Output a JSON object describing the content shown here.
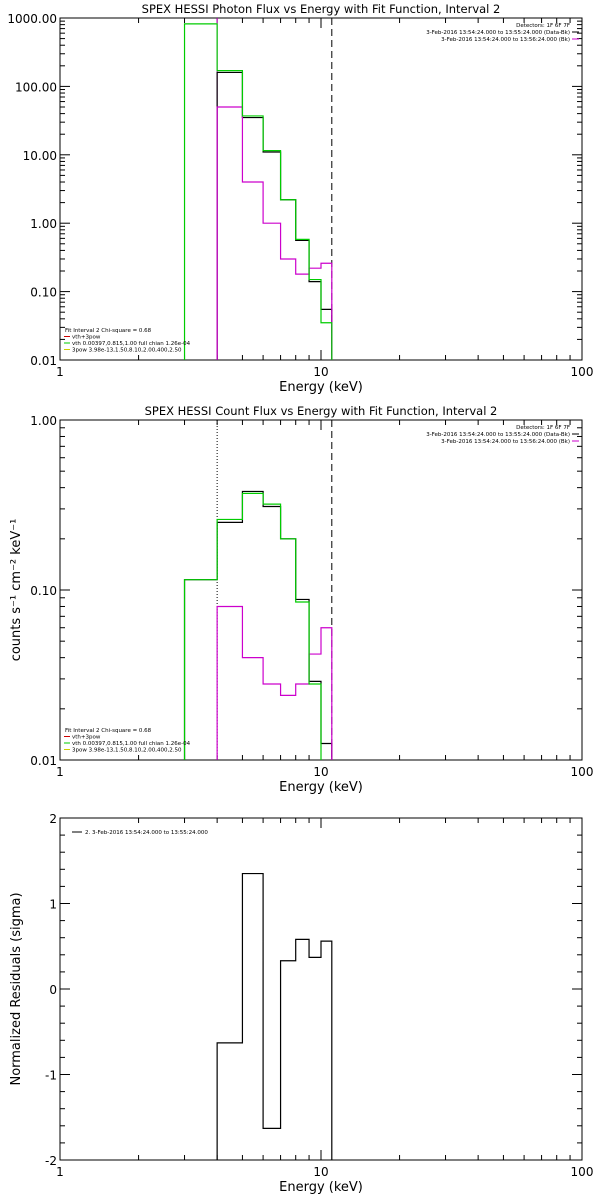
{
  "chart_data": [
    {
      "type": "line",
      "title": "SPEX HESSI Photon Flux vs Energy with Fit Function, Interval 2",
      "xlabel": "Energy (keV)",
      "ylabel": "",
      "xscale": "log",
      "yscale": "log",
      "xlim": [
        1,
        100
      ],
      "ylim": [
        0.01,
        1000
      ],
      "xticks": [
        {
          "v": 1,
          "label": "1"
        },
        {
          "v": 10,
          "label": "10"
        },
        {
          "v": 100,
          "label": "100"
        }
      ],
      "yticks": [
        {
          "v": 1000,
          "label": "1000.00"
        },
        {
          "v": 100,
          "label": "100.00"
        },
        {
          "v": 10,
          "label": "10.00"
        },
        {
          "v": 1,
          "label": "1.00"
        },
        {
          "v": 0.1,
          "label": "0.10"
        },
        {
          "v": 0.01,
          "label": "0.01"
        }
      ],
      "vlines": [
        {
          "x": 4.0,
          "style": "solid",
          "color": "#cc00cc"
        },
        {
          "x": 11.0,
          "style": "dashed",
          "color": "#000000"
        }
      ],
      "legend_top_right": [
        {
          "text": "Detectors: 1F 6F 7F",
          "color": ""
        },
        {
          "text": "3-Feb-2016 13:54:24.000 to 13:55:24.000 (Data-Bk)",
          "color": "#000000"
        },
        {
          "text": "3-Feb-2016 13:54:24.000 to 13:56:24.000 (Bk)",
          "color": "#cc00cc"
        }
      ],
      "legend_bottom_left": [
        {
          "text": "Fit Interval 2   Chi-square = 0.68",
          "color": ""
        },
        {
          "text": "vth+3pow",
          "color": "#cc0000"
        },
        {
          "text": "vth 0.00397,0.815,1.00   full chian 1.26e-04",
          "color": "#00cc00"
        },
        {
          "text": "3pow 3.98e-13,1.50,8.10,2.00,400,2.50",
          "color": "#cccc00"
        }
      ],
      "series": [
        {
          "color": "#000000",
          "edges": [
            4.0,
            5.0,
            6.0,
            7.0,
            8.0,
            9.0,
            10.0,
            11.0
          ],
          "values": [
            160,
            35,
            11,
            2.2,
            0.56,
            0.14,
            0.055
          ]
        },
        {
          "color": "#cc00cc",
          "edges": [
            4.0,
            5.0,
            6.0,
            7.0,
            8.0,
            9.0,
            10.0,
            11.0
          ],
          "values": [
            50,
            4.0,
            1.0,
            0.3,
            0.18,
            0.22,
            0.26
          ]
        },
        {
          "color": "#00cc00",
          "edges": [
            3.0,
            4.0,
            5.0,
            6.0,
            7.0,
            8.0,
            9.0,
            10.0,
            11.0
          ],
          "values": [
            820,
            170,
            37,
            11.5,
            2.2,
            0.58,
            0.15,
            0.035
          ]
        }
      ]
    },
    {
      "type": "line",
      "title": "SPEX HESSI Count Flux vs Energy with Fit Function, Interval 2",
      "xlabel": "Energy (keV)",
      "ylabel": "counts s⁻¹ cm⁻² keV⁻¹",
      "xscale": "log",
      "yscale": "log",
      "xlim": [
        1,
        100
      ],
      "ylim": [
        0.01,
        1
      ],
      "xticks": [
        {
          "v": 1,
          "label": "1"
        },
        {
          "v": 10,
          "label": "10"
        },
        {
          "v": 100,
          "label": "100"
        }
      ],
      "yticks": [
        {
          "v": 1,
          "label": "1.00"
        },
        {
          "v": 0.1,
          "label": "0.10"
        },
        {
          "v": 0.01,
          "label": "0.01"
        }
      ],
      "vlines": [
        {
          "x": 4.0,
          "style": "dotted",
          "color": "#000000"
        },
        {
          "x": 11.0,
          "style": "dashed",
          "color": "#000000"
        }
      ],
      "legend_top_right": [
        {
          "text": "Detectors: 1F 6F 7F",
          "color": ""
        },
        {
          "text": "3-Feb-2016 13:54:24.000 to 13:55:24.000 (Data-Bk)",
          "color": "#000000"
        },
        {
          "text": "3-Feb-2016 13:54:24.000 to 13:56:24.000 (Bk)",
          "color": "#cc00cc"
        }
      ],
      "legend_bottom_left": [
        {
          "text": "Fit Interval 2   Chi-square = 0.68",
          "color": ""
        },
        {
          "text": "vth+3pow",
          "color": "#cc0000"
        },
        {
          "text": "vth 0.00397,0.815,1.00   full chian 1.26e-04",
          "color": "#00cc00"
        },
        {
          "text": "3pow 3.98e-13,1.50,8.10,2.00,400,2.50",
          "color": "#cccc00"
        }
      ],
      "series": [
        {
          "color": "#000000",
          "edges": [
            3.0,
            4.0,
            5.0,
            6.0,
            7.0,
            8.0,
            9.0,
            10.0,
            11.0
          ],
          "values": [
            0.115,
            0.25,
            0.38,
            0.31,
            0.2,
            0.088,
            0.029,
            0.0125
          ]
        },
        {
          "color": "#cc00cc",
          "edges": [
            4.0,
            5.0,
            6.0,
            7.0,
            8.0,
            9.0,
            10.0,
            11.0
          ],
          "values": [
            0.08,
            0.04,
            0.028,
            0.024,
            0.028,
            0.042,
            0.06
          ]
        },
        {
          "color": "#00cc00",
          "edges": [
            3.0,
            4.0,
            5.0,
            6.0,
            7.0,
            8.0,
            9.0,
            10.0
          ],
          "values": [
            0.115,
            0.26,
            0.37,
            0.32,
            0.2,
            0.085,
            0.028
          ]
        }
      ]
    },
    {
      "type": "line",
      "title": "",
      "xlabel": "Energy (keV)",
      "ylabel": "Normalized Residuals (sigma)",
      "xscale": "log",
      "yscale": "linear",
      "xlim": [
        1,
        100
      ],
      "ylim": [
        -2,
        2
      ],
      "xticks": [
        {
          "v": 1,
          "label": "1"
        },
        {
          "v": 10,
          "label": "10"
        },
        {
          "v": 100,
          "label": "100"
        }
      ],
      "yticks": [
        {
          "v": 2,
          "label": "2"
        },
        {
          "v": 1,
          "label": "1"
        },
        {
          "v": 0,
          "label": "0"
        },
        {
          "v": -1,
          "label": "-1"
        },
        {
          "v": -2,
          "label": "-2"
        }
      ],
      "vlines": [],
      "legend_top_right": [],
      "legend_bottom_left": [],
      "legend_top_left": [
        {
          "text": "2.  3-Feb-2016 13:54:24.000 to 13:55:24.000",
          "color": "#000000"
        }
      ],
      "series": [
        {
          "color": "#000000",
          "edges": [
            4.0,
            5.0,
            6.0,
            7.0,
            8.0,
            9.0,
            10.0,
            11.0
          ],
          "values": [
            -0.63,
            1.35,
            -1.63,
            0.33,
            0.58,
            0.37,
            0.56
          ]
        }
      ]
    }
  ]
}
